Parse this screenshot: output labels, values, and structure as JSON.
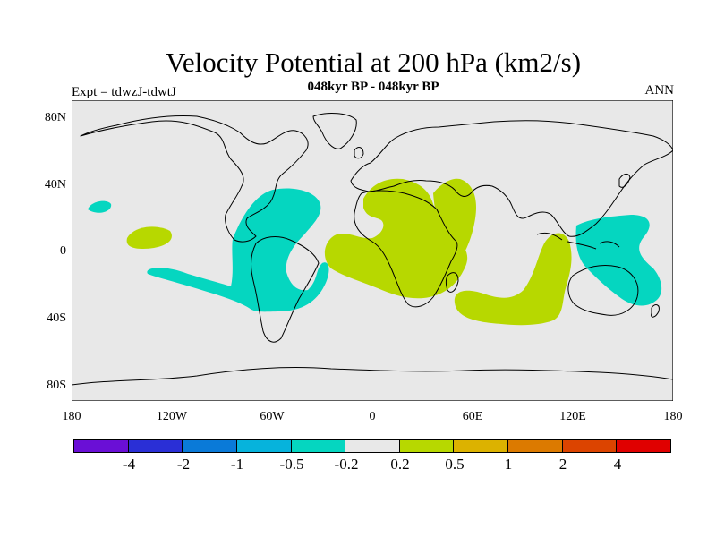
{
  "header": {
    "title": "Velocity Potential at 200 hPa (km2/s)",
    "subtitle": "048kyr BP - 048kyr BP",
    "left": "Expt = tdwzJ-tdwtJ",
    "right": "ANN"
  },
  "map": {
    "land_color": "#e8e8e8",
    "coast_color": "#000000",
    "lat_ticks": [
      "80N",
      "40N",
      "0",
      "40S",
      "80S"
    ],
    "lon_ticks": [
      "180",
      "120W",
      "60W",
      "0",
      "60E",
      "120E",
      "180"
    ]
  },
  "colorbar": {
    "colors": [
      "#6a0fd6",
      "#2a2fd6",
      "#0a7ad8",
      "#06b3dc",
      "#05d6c0",
      "#e8e8e8",
      "#b7d800",
      "#dcb200",
      "#dc7a00",
      "#dc4400",
      "#e00000"
    ],
    "labels": [
      "-4",
      "-2",
      "-1",
      "-0.5",
      "-0.2",
      "0.2",
      "0.5",
      "1",
      "2",
      "4"
    ]
  },
  "legend_colors": {
    "negative": "#05d6c0",
    "positive": "#b7d800"
  }
}
